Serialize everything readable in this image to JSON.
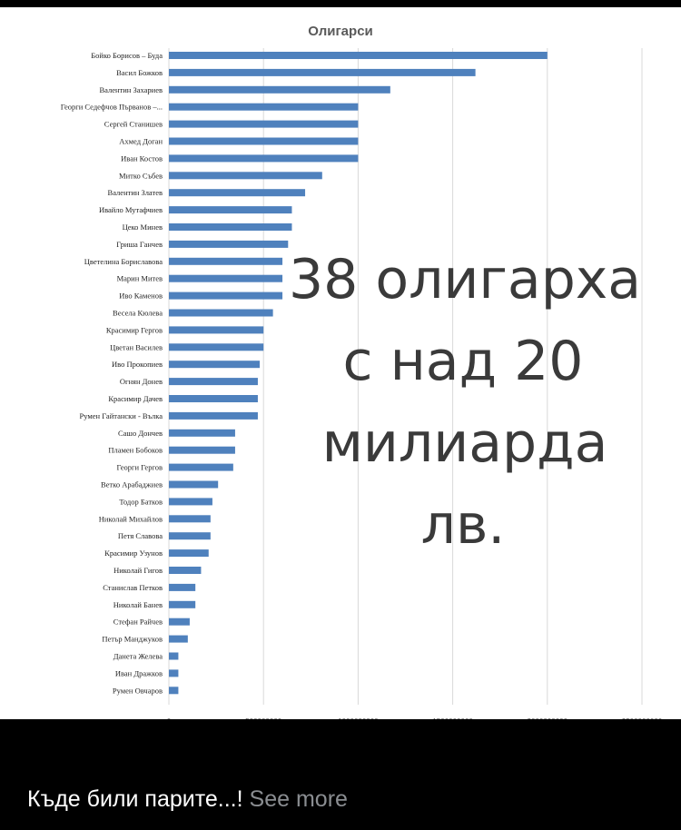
{
  "post": {
    "caption_text": "Къде били парите...!",
    "see_more_label": "See more"
  },
  "overlay": {
    "lines": [
      "38 олигарха",
      "с над 20",
      "милиарда",
      "лв."
    ]
  },
  "colors": {
    "bar": "#4f81bd",
    "grid": "#d9d9d9",
    "overlay_text": "#3a3a3a"
  },
  "chart_data": {
    "type": "bar",
    "orientation": "horizontal",
    "title": "Олигарси",
    "xlabel": "",
    "ylabel": "",
    "xlim": [
      0,
      2500000000
    ],
    "ticks": [
      "0",
      "500000000",
      "1000000000",
      "1500000000",
      "2000000000",
      "2500000000"
    ],
    "grid": true,
    "legend": "none",
    "categories": [
      "Бойко Борисов – Буда",
      "Васил Божков",
      "Валентин Захариев",
      "Георги Седефчов Първанов –...",
      "Сергей Станишев",
      "Ахмед Доган",
      "Иван Костов",
      "Митко Събев",
      "Валентин Златев",
      "Ивайло Мутафчиев",
      "Цеко Минев",
      "Гриша Ганчев",
      "Цветелина Бориславова",
      "Марин Митев",
      "Иво Каменов",
      "Весела Кюлева",
      "Красимир Гергов",
      "Цветан Василев",
      "Иво Прокопиев",
      "Огнян Донев",
      "Красимир Дачев",
      "Румен Гайтански - Вълка",
      "Сашо Дончев",
      "Пламен Бобоков",
      "Георги Гергов",
      "Ветко Арабаджиев",
      "Тодор Батков",
      "Николай Михайлов",
      "Петя Славова",
      "Красимир Узунов",
      "Николай Гигов",
      "Станислав Петков",
      "Николай Банев",
      "Стефан Райчев",
      "Петър Манджуков",
      "Данета Желева",
      "Иван Дражков",
      "Румен Овчаров"
    ],
    "values": [
      2000000000,
      1620000000,
      1170000000,
      1000000000,
      1000000000,
      1000000000,
      1000000000,
      810000000,
      720000000,
      650000000,
      650000000,
      630000000,
      600000000,
      600000000,
      600000000,
      550000000,
      500000000,
      500000000,
      480000000,
      470000000,
      470000000,
      470000000,
      350000000,
      350000000,
      340000000,
      260000000,
      230000000,
      220000000,
      220000000,
      210000000,
      170000000,
      140000000,
      140000000,
      110000000,
      100000000,
      50000000,
      50000000,
      50000000
    ]
  }
}
